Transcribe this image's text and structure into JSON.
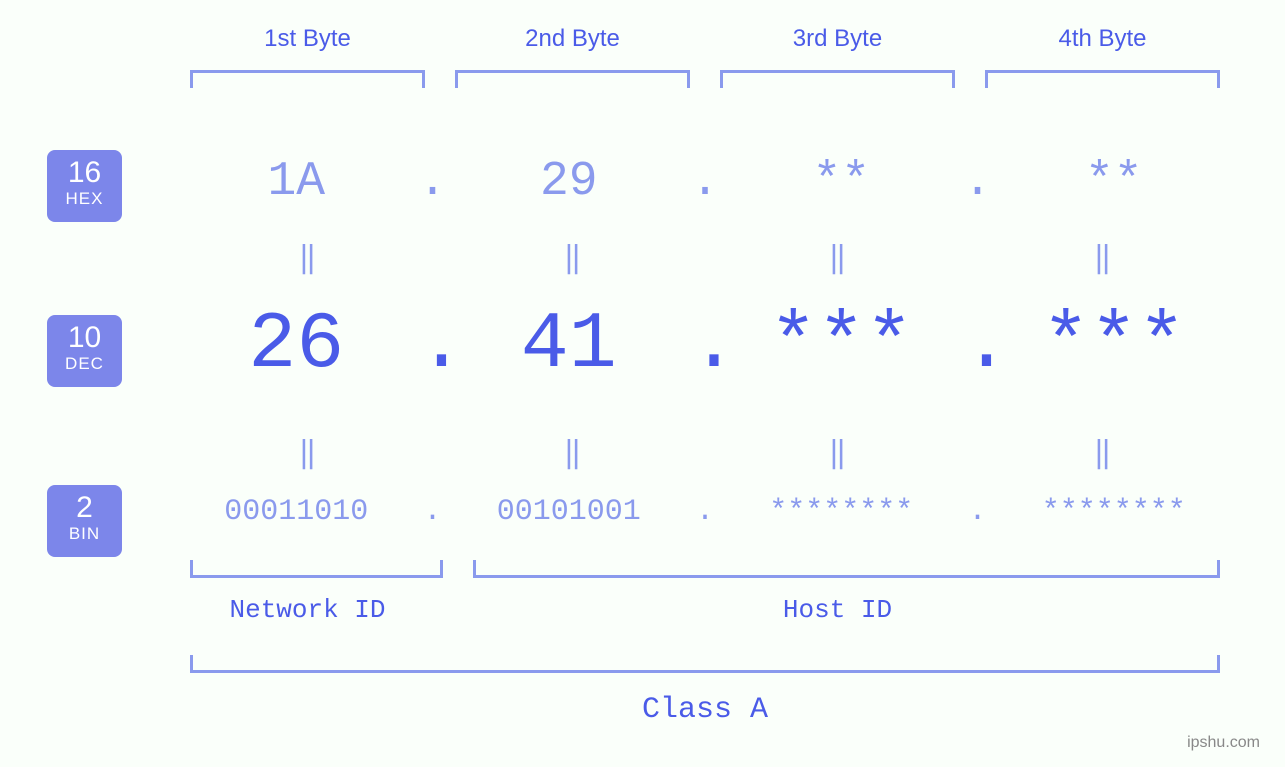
{
  "colors": {
    "background": "#fafffa",
    "primary": "#4a5be8",
    "light": "#8a9aed",
    "badge_bg": "#7c86ea",
    "badge_fg": "#ffffff"
  },
  "typography": {
    "mono_family": "Courier New",
    "header_fontsize": 24,
    "hex_fontsize": 48,
    "dec_fontsize": 80,
    "bin_fontsize": 30,
    "equals_fontsize": 30,
    "label_fontsize": 26,
    "class_fontsize": 30,
    "badge_num_fontsize": 30,
    "badge_lbl_fontsize": 17
  },
  "byte_headers": [
    "1st Byte",
    "2nd Byte",
    "3rd Byte",
    "4th Byte"
  ],
  "bases": {
    "hex": {
      "num": "16",
      "label": "HEX"
    },
    "dec": {
      "num": "10",
      "label": "DEC"
    },
    "bin": {
      "num": "2",
      "label": "BIN"
    }
  },
  "values": {
    "hex": [
      "1A",
      "29",
      "**",
      "**"
    ],
    "dec": [
      "26",
      "41",
      "***",
      "***"
    ],
    "bin": [
      "00011010",
      "00101001",
      "********",
      "********"
    ]
  },
  "equals_glyph": "‖",
  "dot_glyph": ".",
  "id_sections": {
    "network": {
      "label": "Network ID",
      "byte_span": 1
    },
    "host": {
      "label": "Host ID",
      "byte_span": 3
    }
  },
  "class_label": "Class A",
  "watermark": "ipshu.com"
}
